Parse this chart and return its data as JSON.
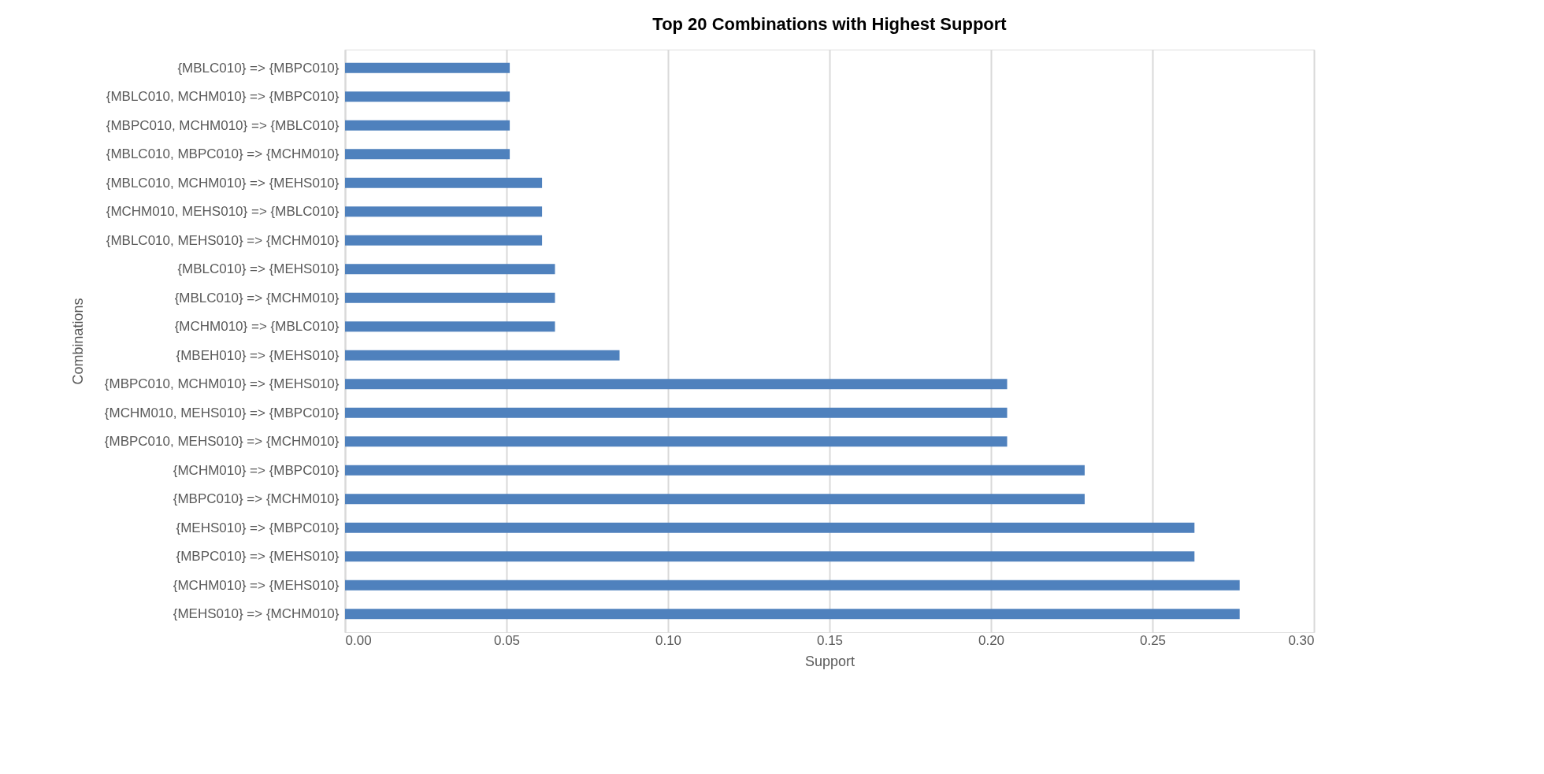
{
  "chart_data": {
    "type": "bar",
    "orientation": "horizontal",
    "title": "Top 20 Combinations with Highest Support",
    "xlabel": "Support",
    "ylabel": "Combinations",
    "categories": [
      "{MBLC010} => {MBPC010}",
      "{MBLC010, MCHM010} => {MBPC010}",
      "{MBPC010, MCHM010} => {MBLC010}",
      "{MBLC010, MBPC010} => {MCHM010}",
      "{MBLC010, MCHM010} => {MEHS010}",
      "{MCHM010, MEHS010} => {MBLC010}",
      "{MBLC010, MEHS010} => {MCHM010}",
      "{MBLC010} => {MEHS010}",
      "{MBLC010} => {MCHM010}",
      "{MCHM010} => {MBLC010}",
      "{MBEH010} => {MEHS010}",
      "{MBPC010, MCHM010} => {MEHS010}",
      "{MCHM010, MEHS010} => {MBPC010}",
      "{MBPC010, MEHS010} => {MCHM010}",
      "{MCHM010} => {MBPC010}",
      "{MBPC010} => {MCHM010}",
      "{MEHS010} => {MBPC010}",
      "{MBPC010} => {MEHS010}",
      "{MCHM010} => {MEHS010}",
      "{MEHS010} => {MCHM010}"
    ],
    "values": [
      0.051,
      0.051,
      0.051,
      0.051,
      0.061,
      0.061,
      0.061,
      0.065,
      0.065,
      0.065,
      0.085,
      0.205,
      0.205,
      0.205,
      0.229,
      0.229,
      0.263,
      0.263,
      0.277,
      0.277
    ],
    "color": "#4f81bd",
    "xlim": [
      0,
      0.3
    ],
    "xticks": [
      {
        "value": 0,
        "label": "0.00"
      },
      {
        "value": 0.05,
        "label": "0.05"
      },
      {
        "value": 0.1,
        "label": "0.10"
      },
      {
        "value": 0.15,
        "label": "0.15"
      },
      {
        "value": 0.2,
        "label": "0.20"
      },
      {
        "value": 0.25,
        "label": "0.25"
      },
      {
        "value": 0.3,
        "label": "0.30"
      }
    ],
    "grid": "x"
  }
}
